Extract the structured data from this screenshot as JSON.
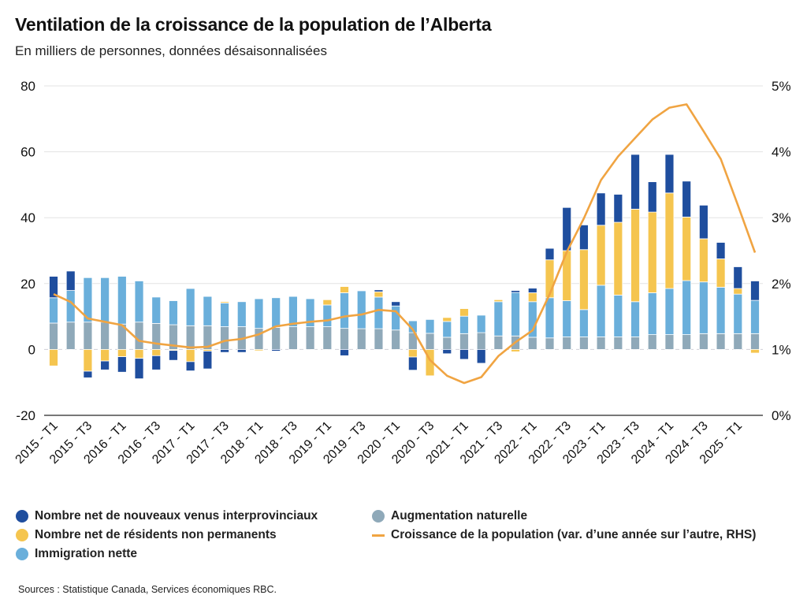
{
  "header": {
    "title": "Ventilation de la croissance de la population de l’Alberta",
    "subtitle": "En milliers de personnes, données désaisonnalisées"
  },
  "legend": {
    "items": [
      {
        "key": "interprov",
        "label": "Nombre net de nouveaux venus interprovinciaux",
        "shape": "circle-icon"
      },
      {
        "key": "npr",
        "label": "Nombre net de résidents non permanents",
        "shape": "circle-icon"
      },
      {
        "key": "immigration",
        "label": "Immigration nette",
        "shape": "circle-icon"
      },
      {
        "key": "natural",
        "label": "Augmentation naturelle",
        "shape": "circle-icon"
      },
      {
        "key": "growth",
        "label": "Croissance de la population (var. d’une année sur l’autre, RHS)",
        "shape": "line-icon"
      }
    ]
  },
  "footer": {
    "source": "Sources : Statistique Canada, Services économiques RBC."
  },
  "colors": {
    "interprov": "#1f4e9e",
    "npr": "#f5c54f",
    "immigration": "#6aafdb",
    "natural": "#8fa9b9",
    "growth": "#f0a442",
    "grid": "#e3e3e3",
    "axis": "#777777"
  },
  "chart_data": {
    "type": "bar",
    "stacked": true,
    "title": "Ventilation de la croissance de la population de l’Alberta",
    "subtitle": "En milliers de personnes, données désaisonnalisées",
    "xlabel": "",
    "ylabel": "",
    "ylim": [
      -20,
      80
    ],
    "y_ticks": [
      "-20",
      "0",
      "20",
      "40",
      "60",
      "80"
    ],
    "y2lim": [
      0,
      5
    ],
    "y2_ticks": [
      "0%",
      "1%",
      "2%",
      "3%",
      "4%",
      "5%"
    ],
    "grid": true,
    "legend_position": "bottom-left",
    "categories": [
      "2015 - T1",
      "2015 - T2",
      "2015 - T3",
      "2015 - T4",
      "2016 - T1",
      "2016 - T2",
      "2016 - T3",
      "2016 - T4",
      "2017 - T1",
      "2017 - T2",
      "2017 - T3",
      "2017 - T4",
      "2018 - T1",
      "2018 - T2",
      "2018 - T3",
      "2018 - T4",
      "2019 - T1",
      "2019 - T2",
      "2019 - T3",
      "2019 - T4",
      "2020 - T1",
      "2020 - T2",
      "2020 - T3",
      "2020 - T4",
      "2021 - T1",
      "2021 - T2",
      "2021 - T3",
      "2021 - T4",
      "2022 - T1",
      "2022 - T2",
      "2022 - T3",
      "2022 - T4",
      "2023 - T1",
      "2023 - T2",
      "2023 - T3",
      "2023 - T4",
      "2024 - T1",
      "2024 - T2",
      "2024 - T3",
      "2024 - T4",
      "2025 - T1",
      "2025 - T2"
    ],
    "x_tick_labels": [
      "2015 - T1",
      "2015 - T3",
      "2016 - T1",
      "2016 - T3",
      "2017 - T1",
      "2017 - T3",
      "2018 - T1",
      "2018 - T3",
      "2019 - T1",
      "2019 - T3",
      "2020 - T1",
      "2020 - T3",
      "2021 - T1",
      "2021 - T3",
      "2022 - T1",
      "2022 - T3",
      "2023 - T1",
      "2023 - T3",
      "2024 - T1",
      "2024 - T3",
      "2025 - T1"
    ],
    "series": [
      {
        "name": "Augmentation naturelle",
        "key": "natural",
        "axis": "left",
        "values": [
          8.0,
          8.3,
          8.3,
          8.3,
          7.7,
          8.3,
          7.9,
          7.5,
          7.2,
          7.2,
          6.9,
          6.9,
          6.4,
          6.7,
          6.9,
          6.9,
          6.9,
          6.4,
          6.3,
          6.3,
          5.9,
          5.1,
          4.9,
          3.7,
          4.8,
          5.1,
          4.1,
          4.1,
          3.7,
          3.5,
          3.8,
          3.8,
          3.8,
          3.8,
          3.8,
          4.5,
          4.5,
          4.5,
          4.8,
          4.8,
          4.8,
          4.8
        ]
      },
      {
        "name": "Immigration nette",
        "key": "immigration",
        "axis": "left",
        "values": [
          7.7,
          9.6,
          13.5,
          13.5,
          14.5,
          12.5,
          8.0,
          7.3,
          11.3,
          8.9,
          7.2,
          7.6,
          9.0,
          9.0,
          9.2,
          8.5,
          6.6,
          10.8,
          11.5,
          9.6,
          7.3,
          3.6,
          4.2,
          4.8,
          5.3,
          5.3,
          10.4,
          13.2,
          10.8,
          12.2,
          11.0,
          8.3,
          15.7,
          12.7,
          10.7,
          12.7,
          14.0,
          16.4,
          15.7,
          14.1,
          12.0,
          10.1
        ]
      },
      {
        "name": "Nombre net de résidents non permanents",
        "key": "npr",
        "axis": "left",
        "values": [
          -5.0,
          0.0,
          -6.6,
          -3.5,
          -2.2,
          -2.7,
          -1.9,
          -0.3,
          -3.7,
          -0.5,
          0.4,
          0.0,
          -0.4,
          0.0,
          0.0,
          0.0,
          1.6,
          1.9,
          0.0,
          1.6,
          0.0,
          -2.3,
          -8.0,
          1.2,
          2.3,
          0.0,
          0.6,
          -0.7,
          2.7,
          11.5,
          15.2,
          18.2,
          18.2,
          22.1,
          28.1,
          24.5,
          29.0,
          19.3,
          13.1,
          8.6,
          1.7,
          -1.1
        ]
      },
      {
        "name": "Nombre net de nouveaux venus interprovinciaux",
        "key": "interprov",
        "axis": "left",
        "values": [
          6.5,
          5.9,
          -2.0,
          -2.7,
          -4.7,
          -6.2,
          -4.3,
          -3.0,
          -2.8,
          -5.4,
          -0.9,
          -0.9,
          0.0,
          -0.5,
          0.0,
          0.0,
          0.0,
          -1.9,
          0.0,
          0.6,
          1.3,
          -4.0,
          0.0,
          -1.3,
          -3.0,
          -4.2,
          0.0,
          0.6,
          1.4,
          3.5,
          13.1,
          7.5,
          9.8,
          8.5,
          16.6,
          9.2,
          11.7,
          10.9,
          10.2,
          5.0,
          6.6,
          5.9
        ]
      },
      {
        "name": "Croissance de la population (var. d’une année sur l’autre, RHS)",
        "key": "growth",
        "axis": "right",
        "type": "line",
        "unit": "%",
        "values": [
          1.84,
          1.72,
          1.47,
          1.42,
          1.37,
          1.13,
          1.09,
          1.06,
          1.03,
          1.04,
          1.13,
          1.16,
          1.23,
          1.35,
          1.39,
          1.42,
          1.44,
          1.5,
          1.53,
          1.6,
          1.58,
          1.3,
          0.84,
          0.6,
          0.49,
          0.58,
          0.9,
          1.11,
          1.29,
          1.84,
          2.48,
          2.99,
          3.57,
          3.93,
          4.21,
          4.49,
          4.67,
          4.72,
          4.31,
          3.89,
          3.19,
          2.47
        ]
      }
    ]
  }
}
